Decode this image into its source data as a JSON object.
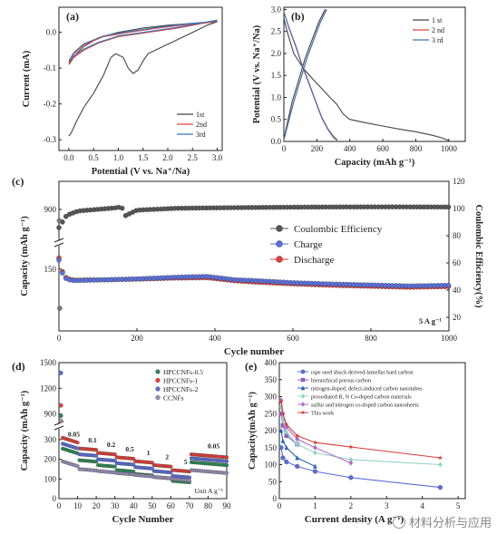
{
  "watermark": "材料分析与应用",
  "chart_data": [
    {
      "panel": "(a)",
      "type": "line",
      "xlabel": "Potential (V vs. Na⁺/Na)",
      "ylabel": "Current (mA)",
      "xlim": [
        -0.2,
        3.1
      ],
      "ylim": [
        -0.33,
        0.07
      ],
      "xticks": [
        "0.0",
        "0.5",
        "1.0",
        "1.5",
        "2.0",
        "2.5",
        "3.0"
      ],
      "yticks": [
        "0.0",
        "-0.1",
        "-0.2",
        "-0.3"
      ],
      "legend": [
        "1st",
        "2nd",
        "3rd"
      ],
      "colors": [
        "#444444",
        "#e0403a",
        "#3b76b8"
      ],
      "series": [
        {
          "name": "1st",
          "x": [
            0.0,
            0.05,
            0.15,
            0.3,
            0.6,
            1.0,
            1.5,
            2.0,
            2.5,
            3.0,
            2.8,
            2.5,
            2.2,
            1.9,
            1.6,
            1.5,
            1.4,
            1.3,
            1.2,
            1.1,
            0.95,
            0.85,
            0.7,
            0.5,
            0.3,
            0.15,
            0.05,
            0.0
          ],
          "y": [
            -0.09,
            -0.08,
            -0.06,
            -0.04,
            -0.015,
            0.0,
            0.012,
            0.02,
            0.025,
            0.03,
            0.02,
            0.0,
            -0.02,
            -0.04,
            -0.06,
            -0.08,
            -0.105,
            -0.115,
            -0.1,
            -0.07,
            -0.06,
            -0.07,
            -0.12,
            -0.17,
            -0.21,
            -0.25,
            -0.28,
            -0.29
          ]
        },
        {
          "name": "2nd",
          "x": [
            0.0,
            0.1,
            0.3,
            0.7,
            1.2,
            1.8,
            2.4,
            2.9,
            3.0,
            2.7,
            2.2,
            1.6,
            1.0,
            0.6,
            0.3,
            0.1,
            0.0
          ],
          "y": [
            -0.085,
            -0.06,
            -0.035,
            -0.012,
            0.0,
            0.012,
            0.022,
            0.028,
            0.032,
            0.025,
            0.012,
            0.0,
            -0.012,
            -0.03,
            -0.05,
            -0.07,
            -0.085
          ]
        },
        {
          "name": "3rd",
          "x": [
            0.0,
            0.1,
            0.3,
            0.7,
            1.2,
            1.8,
            2.4,
            2.9,
            3.0,
            2.7,
            2.2,
            1.6,
            1.0,
            0.6,
            0.3,
            0.1,
            0.0
          ],
          "y": [
            -0.08,
            -0.056,
            -0.032,
            -0.01,
            0.002,
            0.014,
            0.024,
            0.03,
            0.034,
            0.027,
            0.014,
            0.002,
            -0.01,
            -0.028,
            -0.047,
            -0.066,
            -0.08
          ]
        }
      ]
    },
    {
      "panel": "(b)",
      "type": "line",
      "xlabel": "Capacity (mAh g⁻¹)",
      "ylabel": "Potential (V vs. Na⁺/Na)",
      "xlim": [
        0,
        1100
      ],
      "ylim": [
        0,
        3.05
      ],
      "xticks": [
        "0",
        "200",
        "400",
        "600",
        "800",
        "1000"
      ],
      "yticks": [
        "0.0",
        "0.5",
        "1.0",
        "1.5",
        "2.0",
        "2.5",
        "3.0"
      ],
      "legend": [
        "1 st",
        "2 nd",
        "3 rd"
      ],
      "colors": [
        "#444444",
        "#e0403a",
        "#3b76b8"
      ],
      "series": [
        {
          "name": "1 st",
          "x": [
            0,
            20,
            60,
            120,
            180,
            230,
            280,
            320,
            360,
            400,
            500,
            600,
            700,
            800,
            900,
            960,
            1000
          ],
          "y": [
            2.8,
            2.5,
            2.0,
            1.65,
            1.4,
            1.2,
            1.0,
            0.85,
            0.62,
            0.5,
            0.42,
            0.35,
            0.28,
            0.22,
            0.14,
            0.08,
            0.02
          ]
        },
        {
          "name": "1 st",
          "x": [
            0,
            20,
            50,
            90,
            130,
            170,
            210,
            250
          ],
          "y": [
            0.05,
            0.4,
            0.9,
            1.4,
            1.9,
            2.3,
            2.7,
            3.0
          ]
        },
        {
          "name": "2 nd",
          "x": [
            0,
            30,
            70,
            110,
            150,
            190,
            230,
            265,
            300,
            325
          ],
          "y": [
            2.95,
            2.6,
            2.2,
            1.75,
            1.35,
            0.95,
            0.55,
            0.3,
            0.12,
            0.03
          ]
        },
        {
          "name": "2 nd",
          "x": [
            0,
            25,
            60,
            100,
            140,
            180,
            220,
            260
          ],
          "y": [
            0.04,
            0.4,
            0.9,
            1.4,
            1.9,
            2.3,
            2.7,
            3.0
          ]
        },
        {
          "name": "3 rd",
          "x": [
            0,
            30,
            70,
            110,
            150,
            190,
            230,
            265,
            298,
            322
          ],
          "y": [
            2.94,
            2.58,
            2.18,
            1.73,
            1.33,
            0.93,
            0.53,
            0.28,
            0.1,
            0.02
          ]
        },
        {
          "name": "3 rd",
          "x": [
            0,
            25,
            60,
            100,
            140,
            180,
            220,
            258
          ],
          "y": [
            0.03,
            0.4,
            0.9,
            1.4,
            1.9,
            2.3,
            2.7,
            3.0
          ]
        }
      ]
    },
    {
      "panel": "(c)",
      "type": "scatter",
      "xlabel": "Cycle number",
      "ylabel": "Capacity (mAh g⁻¹)",
      "ylabel_right": "Coulombic Efficiency(%)",
      "annotation": "5 A g⁻¹",
      "xlim": [
        0,
        1000
      ],
      "xticks": [
        "0",
        "200",
        "400",
        "600",
        "800",
        "1000"
      ],
      "yticks_left": [
        "0",
        "50",
        "100",
        "150",
        "900"
      ],
      "yticks_right": [
        "20",
        "40",
        "60",
        "80",
        "100",
        "120"
      ],
      "legend": [
        "Coulombic Efficiency",
        "Charge",
        "Discharge"
      ],
      "colors": [
        "#555555",
        "#5b6fd6",
        "#e0403a"
      ],
      "series": [
        {
          "name": "Coulombic Efficiency",
          "axis": "right",
          "x": [
            0,
            20,
            50,
            100,
            150,
            160,
            170,
            200,
            300,
            400,
            500,
            600,
            700,
            800,
            900,
            1000
          ],
          "y": [
            86,
            95,
            98,
            99,
            100,
            101,
            94,
            98,
            99,
            99,
            99,
            99,
            99,
            99,
            99,
            99
          ]
        },
        {
          "name": "Charge",
          "axis": "left",
          "x": [
            0,
            10,
            20,
            40,
            80,
            120,
            200,
            300,
            380,
            450,
            500,
            600,
            700,
            800,
            900,
            1000
          ],
          "y": [
            170,
            135,
            123,
            120,
            121,
            122,
            124,
            128,
            130,
            122,
            120,
            115,
            112,
            110,
            108,
            110
          ]
        },
        {
          "name": "Discharge",
          "axis": "left",
          "x": [
            0,
            10,
            20,
            40,
            80,
            120,
            200,
            300,
            380,
            450,
            500,
            600,
            700,
            800,
            900,
            1000
          ],
          "y": [
            175,
            138,
            125,
            121,
            122,
            122,
            124,
            127,
            128,
            121,
            118,
            114,
            111,
            109,
            107,
            109
          ]
        }
      ],
      "first_point_low": 55,
      "first_point_high": 880
    },
    {
      "panel": "(d)",
      "type": "scatter",
      "xlabel": "Cycle Number",
      "ylabel": "Capacity (mAh g⁻¹)",
      "annotation": "Unit A g⁻¹",
      "xlim": [
        0,
        90
      ],
      "xticks": [
        "0",
        "10",
        "20",
        "30",
        "40",
        "50",
        "60",
        "70",
        "80",
        "90"
      ],
      "yticks": [
        "0",
        "100",
        "200",
        "300",
        "900",
        "1200",
        "1500"
      ],
      "rate_labels": [
        {
          "x": 8,
          "text": "0.05"
        },
        {
          "x": 18,
          "text": "0.1"
        },
        {
          "x": 28,
          "text": "0.2"
        },
        {
          "x": 38,
          "text": "0.5"
        },
        {
          "x": 48,
          "text": "1"
        },
        {
          "x": 58,
          "text": "2"
        },
        {
          "x": 68,
          "text": "5"
        },
        {
          "x": 83,
          "text": "0.05"
        }
      ],
      "legend": [
        "HPCCNFs-0.5",
        "HPCCNFs-1",
        "HPCCNFs-2",
        "CCNFs"
      ],
      "colors": [
        "#2e8b57",
        "#e0403a",
        "#5b6fd6",
        "#9a8fb5"
      ],
      "series": [
        {
          "name": "HPCCNFs-0.5",
          "steps": [
            230,
            195,
            170,
            145,
            125,
            110,
            90,
            185
          ],
          "first": 880
        },
        {
          "name": "HPCCNFs-1",
          "steps": [
            285,
            255,
            232,
            210,
            190,
            170,
            145,
            225
          ],
          "first": 1000
        },
        {
          "name": "HPCCNFs-2",
          "steps": [
            255,
            225,
            200,
            180,
            160,
            140,
            115,
            205
          ],
          "first": 1380
        },
        {
          "name": "CCNFs",
          "steps": [
            165,
            150,
            140,
            130,
            120,
            110,
            100,
            145
          ],
          "first": 820
        }
      ]
    },
    {
      "panel": "(e)",
      "type": "line",
      "xlabel": "Current density (A g⁻¹)",
      "ylabel": "Capacity(mAh g⁻¹)",
      "xlim": [
        0,
        5.2
      ],
      "ylim": [
        0,
        400
      ],
      "xticks": [
        "0",
        "1",
        "2",
        "3",
        "4",
        "5"
      ],
      "yticks": [
        "0",
        "50",
        "100",
        "150",
        "200",
        "250",
        "300",
        "350",
        "400"
      ],
      "legend": [
        "rape seed shuck derived-lamellar hard carbon",
        "hierarchical porous carbon",
        "nitrogen-doped, defect-induced carbon nanotubes",
        "prosodiated B, N Co-doped carbon materials",
        "sulfur and nitrogen co-doped carbon nanosheets",
        "This work"
      ],
      "colors": [
        "#5b6fd6",
        "#8b5fb8",
        "#2d63b0",
        "#8fd3c8",
        "#b06cc8",
        "#d0403a"
      ],
      "markers": [
        "circle",
        "square",
        "triangle",
        "diamond",
        "diamond",
        "star"
      ],
      "series": [
        {
          "name": "rape seed shuck derived-lamellar hard carbon",
          "x": [
            0.05,
            0.1,
            0.2,
            0.5,
            1,
            2,
            4.5
          ],
          "y": [
            150,
            120,
            108,
            95,
            80,
            62,
            33
          ]
        },
        {
          "name": "hierarchical porous carbon",
          "x": [
            0.05,
            0.1,
            0.2,
            0.5
          ],
          "y": [
            250,
            215,
            185,
            160
          ]
        },
        {
          "name": "nitrogen-doped, defect-induced carbon nanotubes",
          "x": [
            0.05,
            0.1,
            0.2,
            0.5,
            1
          ],
          "y": [
            200,
            170,
            150,
            120,
            95
          ]
        },
        {
          "name": "prosodiated B, N Co-doped carbon materials",
          "x": [
            0.05,
            0.1,
            0.2,
            0.5,
            1,
            2,
            4.5
          ],
          "y": [
            270,
            230,
            195,
            160,
            135,
            115,
            100
          ]
        },
        {
          "name": "sulfur and nitrogen co-doped carbon nanosheets",
          "x": [
            0.05,
            0.1,
            0.2,
            0.5,
            1,
            2
          ],
          "y": [
            290,
            250,
            210,
            175,
            150,
            105
          ]
        },
        {
          "name": "This work",
          "x": [
            0.05,
            0.1,
            0.2,
            0.5,
            1,
            2,
            4.5
          ],
          "y": [
            285,
            250,
            218,
            185,
            165,
            152,
            120
          ]
        }
      ]
    }
  ]
}
